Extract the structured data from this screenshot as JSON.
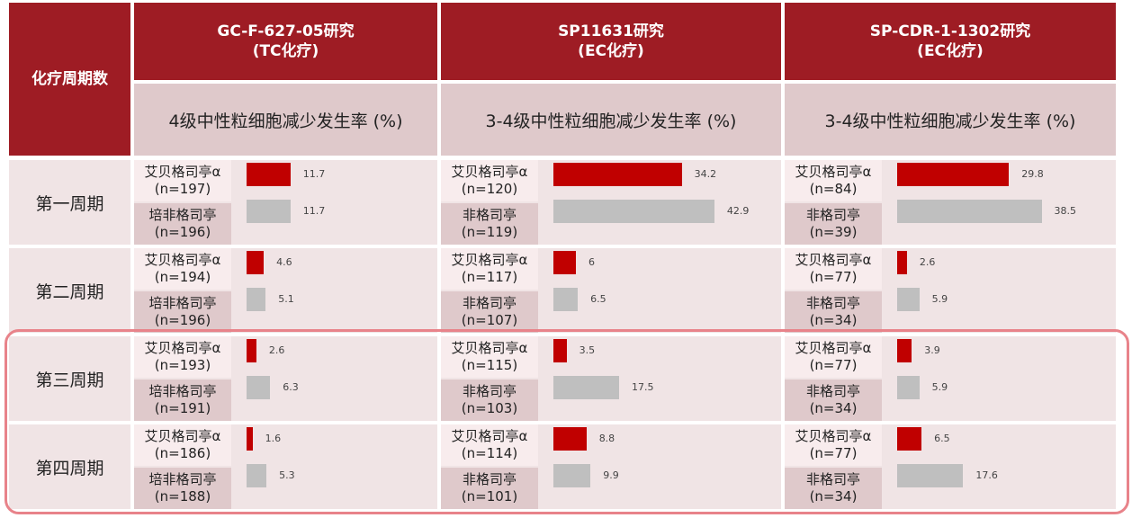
{
  "corner_header": "化疗周期数",
  "studies": [
    {
      "name": "GC-F-627-05研究",
      "regimen": "(TC化疗)",
      "metric": "4级中性粒细胞减少发生率 (%)"
    },
    {
      "name": "SP11631研究",
      "regimen": "(EC化疗)",
      "metric": "3-4级中性粒细胞减少发生率 (%)"
    },
    {
      "name": "SP-CDR-1-1302研究",
      "regimen": "(EC化疗)",
      "metric": "3-4级中性粒细胞减少发生率 (%)"
    }
  ],
  "periods": [
    "第一周期",
    "第二周期",
    "第三周期",
    "第四周期"
  ],
  "colors": {
    "treatment": "#c00000",
    "control": "#bfbfbf",
    "header": "#9e1c24"
  },
  "chart_data": {
    "type": "bar",
    "orientation": "horizontal",
    "panels": [
      {
        "study": "GC-F-627-05研究",
        "rows": [
          {
            "period": "第一周期",
            "a_name": "艾贝格司亭α",
            "a_n": "(n=197)",
            "a_value": 11.7,
            "b_name": "培非格司亭",
            "b_n": "(n=196)",
            "b_value": 11.7
          },
          {
            "period": "第二周期",
            "a_name": "艾贝格司亭α",
            "a_n": "(n=194)",
            "a_value": 4.6,
            "b_name": "培非格司亭",
            "b_n": "(n=196)",
            "b_value": 5.1
          },
          {
            "period": "第三周期",
            "a_name": "艾贝格司亭α",
            "a_n": "(n=193)",
            "a_value": 2.6,
            "b_name": "培非格司亭",
            "b_n": "(n=191)",
            "b_value": 6.3
          },
          {
            "period": "第四周期",
            "a_name": "艾贝格司亭α",
            "a_n": "(n=186)",
            "a_value": 1.6,
            "b_name": "培非格司亭",
            "b_n": "(n=188)",
            "b_value": 5.3
          }
        ]
      },
      {
        "study": "SP11631研究",
        "rows": [
          {
            "period": "第一周期",
            "a_name": "艾贝格司亭α",
            "a_n": "(n=120)",
            "a_value": 34.2,
            "b_name": "非格司亭",
            "b_n": "(n=119)",
            "b_value": 42.9
          },
          {
            "period": "第二周期",
            "a_name": "艾贝格司亭α",
            "a_n": "(n=117)",
            "a_value": 6,
            "b_name": "非格司亭",
            "b_n": "(n=107)",
            "b_value": 6.5
          },
          {
            "period": "第三周期",
            "a_name": "艾贝格司亭α",
            "a_n": "(n=115)",
            "a_value": 3.5,
            "b_name": "非格司亭",
            "b_n": "(n=103)",
            "b_value": 17.5
          },
          {
            "period": "第四周期",
            "a_name": "艾贝格司亭α",
            "a_n": "(n=114)",
            "a_value": 8.8,
            "b_name": "非格司亭",
            "b_n": "(n=101)",
            "b_value": 9.9
          }
        ]
      },
      {
        "study": "SP-CDR-1-1302研究",
        "rows": [
          {
            "period": "第一周期",
            "a_name": "艾贝格司亭α",
            "a_n": "(n=84)",
            "a_value": 29.8,
            "b_name": "非格司亭",
            "b_n": "(n=39)",
            "b_value": 38.5
          },
          {
            "period": "第二周期",
            "a_name": "艾贝格司亭α",
            "a_n": "(n=77)",
            "a_value": 2.6,
            "b_name": "非格司亭",
            "b_n": "(n=34)",
            "b_value": 5.9
          },
          {
            "period": "第三周期",
            "a_name": "艾贝格司亭α",
            "a_n": "(n=77)",
            "a_value": 3.9,
            "b_name": "非格司亭",
            "b_n": "(n=34)",
            "b_value": 5.9
          },
          {
            "period": "第四周期",
            "a_name": "艾贝格司亭α",
            "a_n": "(n=77)",
            "a_value": 6.5,
            "b_name": "非格司亭",
            "b_n": "(n=34)",
            "b_value": 17.6
          }
        ]
      }
    ]
  }
}
